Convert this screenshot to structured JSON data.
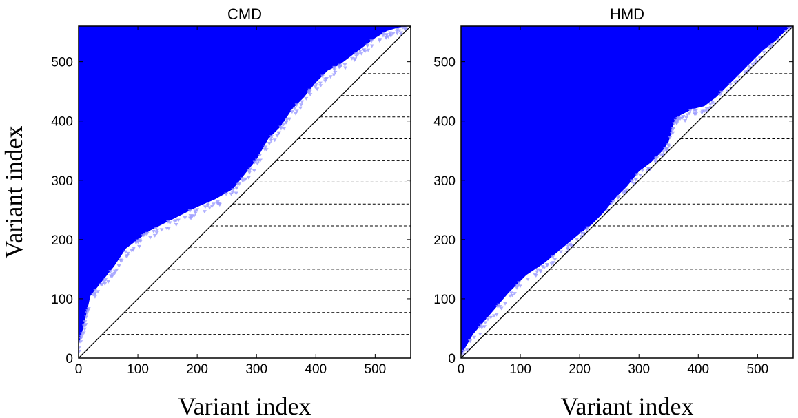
{
  "chart_data": [
    {
      "type": "scatter",
      "title": "CMD",
      "xlabel": "Variant index",
      "ylabel": "Variant index",
      "xlim": [
        0,
        560
      ],
      "ylim": [
        0,
        560
      ],
      "x_ticks": [
        "0",
        "100",
        "200",
        "300",
        "400",
        "500"
      ],
      "y_ticks": [
        "0",
        "100",
        "200",
        "300",
        "400",
        "500"
      ],
      "fill_color": "#0000ff",
      "point_color": "#9c9cff",
      "marker": "triangle-down",
      "diagonal": true,
      "dashed_line_y": [
        40,
        77,
        114,
        150,
        187,
        223,
        260,
        297,
        333,
        370,
        407,
        443,
        480
      ],
      "frontier": [
        [
          0,
          20
        ],
        [
          10,
          60
        ],
        [
          20,
          105
        ],
        [
          40,
          130
        ],
        [
          60,
          155
        ],
        [
          80,
          185
        ],
        [
          100,
          200
        ],
        [
          120,
          215
        ],
        [
          150,
          230
        ],
        [
          180,
          245
        ],
        [
          200,
          255
        ],
        [
          230,
          268
        ],
        [
          260,
          285
        ],
        [
          280,
          310
        ],
        [
          300,
          335
        ],
        [
          320,
          370
        ],
        [
          340,
          390
        ],
        [
          360,
          420
        ],
        [
          380,
          440
        ],
        [
          400,
          465
        ],
        [
          420,
          485
        ],
        [
          440,
          495
        ],
        [
          460,
          510
        ],
        [
          480,
          525
        ],
        [
          500,
          540
        ],
        [
          520,
          552
        ],
        [
          540,
          558
        ],
        [
          560,
          560
        ]
      ]
    },
    {
      "type": "scatter",
      "title": "HMD",
      "xlabel": "Variant index",
      "ylabel": "",
      "xlim": [
        0,
        560
      ],
      "ylim": [
        0,
        560
      ],
      "x_ticks": [
        "0",
        "100",
        "200",
        "300",
        "400",
        "500"
      ],
      "y_ticks": [
        "0",
        "100",
        "200",
        "300",
        "400",
        "500"
      ],
      "fill_color": "#0000ff",
      "point_color": "#9c9cff",
      "marker": "triangle-down",
      "diagonal": true,
      "dashed_line_y": [
        40,
        77,
        114,
        150,
        187,
        223,
        260,
        297,
        333,
        370,
        407,
        443,
        480
      ],
      "frontier": [
        [
          0,
          5
        ],
        [
          20,
          40
        ],
        [
          50,
          75
        ],
        [
          80,
          110
        ],
        [
          110,
          140
        ],
        [
          140,
          160
        ],
        [
          170,
          185
        ],
        [
          200,
          210
        ],
        [
          220,
          225
        ],
        [
          240,
          245
        ],
        [
          260,
          270
        ],
        [
          280,
          290
        ],
        [
          300,
          315
        ],
        [
          320,
          330
        ],
        [
          340,
          350
        ],
        [
          350,
          365
        ],
        [
          360,
          400
        ],
        [
          370,
          410
        ],
        [
          390,
          420
        ],
        [
          410,
          425
        ],
        [
          430,
          440
        ],
        [
          450,
          460
        ],
        [
          470,
          480
        ],
        [
          490,
          500
        ],
        [
          510,
          520
        ],
        [
          530,
          535
        ],
        [
          550,
          555
        ],
        [
          560,
          560
        ]
      ]
    }
  ]
}
